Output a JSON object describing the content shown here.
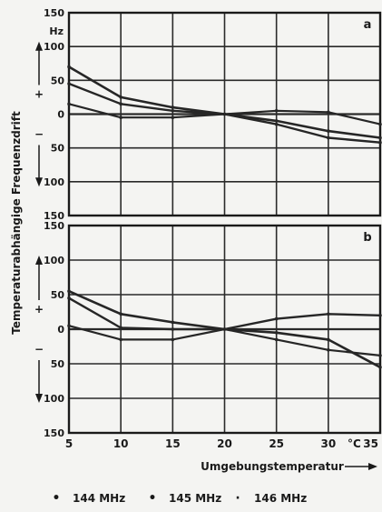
{
  "chart_data": {
    "type": "line",
    "ylabel": "Temperaturabhängige Frequenzdrift",
    "xlabel": "Umgebungstemperatur",
    "x_unit": "°C",
    "y_unit": "Hz",
    "sign_plus": "+",
    "sign_minus": "−",
    "xlim": [
      5,
      35
    ],
    "x_ticks": [
      5,
      10,
      15,
      20,
      25,
      30,
      35
    ],
    "x_tick_labels": [
      "5",
      "10",
      "15",
      "20",
      "25",
      "30",
      "35"
    ],
    "grid": true,
    "legend": [
      {
        "marker": "•",
        "label": "144 MHz"
      },
      {
        "marker": "•",
        "label": "145 MHz"
      },
      {
        "marker": "·",
        "label": "146 MHz"
      }
    ],
    "panels": [
      {
        "label": "a",
        "ylim": [
          -150,
          150
        ],
        "y_ticks": [
          150,
          100,
          50,
          0,
          -50,
          -100,
          -150
        ],
        "y_tick_labels": [
          "150",
          "100",
          "50",
          "0",
          "50",
          "100",
          "150"
        ],
        "x": [
          5,
          10,
          15,
          20,
          25,
          30,
          35
        ],
        "series": [
          {
            "values": [
              70,
              25,
              10,
              0,
              -10,
              -25,
              -35
            ]
          },
          {
            "values": [
              45,
              15,
              5,
              0,
              -15,
              -35,
              -42
            ]
          },
          {
            "values": [
              15,
              -5,
              -5,
              0,
              5,
              3,
              -15
            ]
          }
        ]
      },
      {
        "label": "b",
        "ylim": [
          -150,
          150
        ],
        "y_ticks": [
          150,
          100,
          50,
          0,
          -50,
          -100,
          -150
        ],
        "y_tick_labels": [
          "150",
          "100",
          "50",
          "0",
          "50",
          "100",
          "150"
        ],
        "x": [
          5,
          10,
          15,
          20,
          25,
          30,
          35
        ],
        "series": [
          {
            "values": [
              55,
              22,
              10,
              0,
              -5,
              -15,
              -55
            ]
          },
          {
            "values": [
              45,
              2,
              0,
              0,
              15,
              22,
              20
            ]
          },
          {
            "values": [
              5,
              -15,
              -15,
              0,
              -15,
              -30,
              -38
            ]
          }
        ]
      }
    ]
  }
}
